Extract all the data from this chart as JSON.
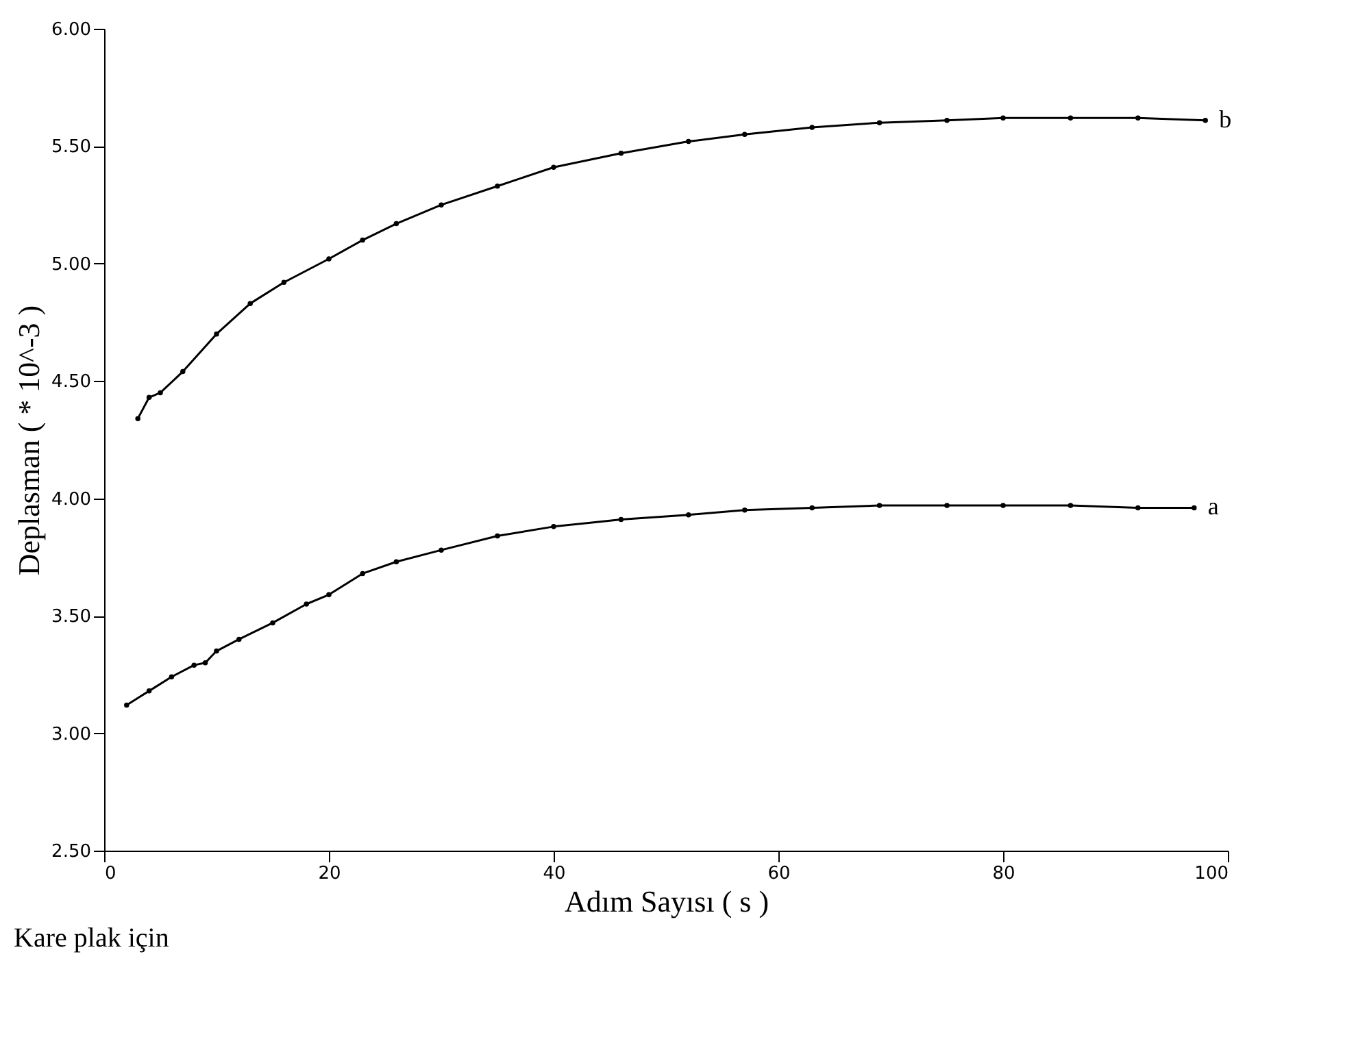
{
  "chart_data": {
    "type": "line",
    "xlabel": "Adım Sayısı ( s )",
    "ylabel": "Deplasman ( * 10^-3 )",
    "xlim": [
      0,
      100
    ],
    "xticks": [
      0,
      20,
      40,
      60,
      80,
      100
    ],
    "ylim": [
      2.5,
      6
    ],
    "yticks": [
      {
        "value": 2.5,
        "label": "2.50"
      },
      {
        "value": 3,
        "label": "3.00"
      },
      {
        "value": 3.5,
        "label": "3.50"
      },
      {
        "value": 4,
        "label": "4.00"
      },
      {
        "value": 4.5,
        "label": "4.50"
      },
      {
        "value": 5,
        "label": "5.00"
      },
      {
        "value": 5.5,
        "label": "5.50"
      },
      {
        "value": 6,
        "label": "6.00"
      }
    ],
    "grid": false,
    "legend": false,
    "marker": "circle",
    "line_style": "solid",
    "annotations": [
      "Kare plak için"
    ],
    "series": [
      {
        "name": "a",
        "color": "#000000",
        "x": [
          2,
          4,
          6,
          8,
          9,
          10,
          12,
          15,
          18,
          20,
          23,
          26,
          30,
          35,
          40,
          46,
          52,
          57,
          63,
          69,
          75,
          80,
          86,
          92,
          97
        ],
        "values": [
          3.12,
          3.18,
          3.24,
          3.29,
          3.3,
          3.35,
          3.4,
          3.47,
          3.55,
          3.59,
          3.68,
          3.73,
          3.78,
          3.84,
          3.88,
          3.91,
          3.93,
          3.95,
          3.96,
          3.97,
          3.97,
          3.97,
          3.97,
          3.96,
          3.96
        ]
      },
      {
        "name": "b",
        "color": "#000000",
        "x": [
          3,
          4,
          5,
          7,
          10,
          13,
          16,
          20,
          23,
          26,
          30,
          35,
          40,
          46,
          52,
          57,
          63,
          69,
          75,
          80,
          86,
          92,
          98
        ],
        "values": [
          4.34,
          4.43,
          4.45,
          4.54,
          4.7,
          4.83,
          4.92,
          5.02,
          5.1,
          5.17,
          5.25,
          5.33,
          5.41,
          5.47,
          5.52,
          5.55,
          5.58,
          5.6,
          5.61,
          5.62,
          5.62,
          5.62,
          5.61
        ]
      }
    ]
  }
}
